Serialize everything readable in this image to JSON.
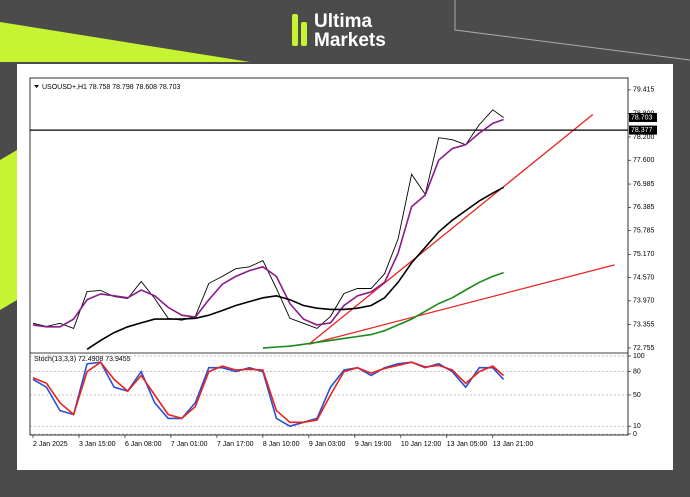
{
  "brand": [
    "Ultima",
    "Markets"
  ],
  "chart_data": [
    {
      "type": "line",
      "title": "USOUSD+,H1 78.758 78.798 78.608 78.703",
      "x": [
        0,
        5,
        10,
        15,
        20,
        25,
        30,
        35,
        40,
        45,
        50,
        55,
        60,
        65,
        70,
        75,
        80,
        85,
        90,
        95,
        100,
        105,
        110,
        115,
        120,
        125,
        130,
        135,
        140,
        145,
        150,
        155,
        160,
        165,
        170,
        174
      ],
      "xlim": [
        0,
        220
      ],
      "ylim": [
        72.65,
        79.67
      ],
      "yticks": [
        79.415,
        {
          "value": 78.8,
          "label": "78.800"
        },
        {
          "value": 78.2,
          "label": "78.200"
        },
        {
          "value": 77.6,
          "label": "77.600"
        },
        76.985,
        76.385,
        75.785,
        {
          "value": 75.17,
          "label": "75.170"
        },
        {
          "value": 74.57,
          "label": "74.570"
        },
        {
          "value": 73.97,
          "label": "73.970"
        },
        73.355,
        72.755
      ],
      "price_lines": [
        78.703,
        78.377
      ],
      "series": [
        {
          "color": "#000000",
          "values": [
            73.39,
            73.31,
            73.39,
            73.26,
            74.21,
            74.24,
            74.08,
            74.03,
            74.47,
            74.03,
            73.52,
            73.47,
            73.57,
            74.42,
            74.6,
            74.8,
            74.85,
            75.01,
            74.29,
            73.52,
            73.39,
            73.26,
            73.57,
            74.16,
            74.29,
            74.29,
            74.67,
            75.57,
            77.24,
            76.72,
            78.18,
            78.13,
            78.0,
            78.52,
            78.9,
            78.7
          ]
        },
        {
          "color": "#8b1a8b",
          "values": [
            73.35,
            73.3,
            73.3,
            73.5,
            74.0,
            74.15,
            74.1,
            74.05,
            74.25,
            74.1,
            73.8,
            73.6,
            73.55,
            74.0,
            74.4,
            74.6,
            74.75,
            74.85,
            74.6,
            73.9,
            73.5,
            73.35,
            73.4,
            73.85,
            74.1,
            74.2,
            74.45,
            75.2,
            76.4,
            76.7,
            77.6,
            77.9,
            78.0,
            78.3,
            78.55,
            78.65
          ]
        },
        {
          "color": "#000000",
          "values": [
            null,
            null,
            null,
            null,
            72.72,
            72.95,
            73.15,
            73.3,
            73.4,
            73.5,
            73.5,
            73.5,
            73.52,
            73.6,
            73.72,
            73.85,
            73.95,
            74.05,
            74.1,
            74.0,
            73.85,
            73.78,
            73.75,
            73.75,
            73.78,
            73.85,
            74.05,
            74.45,
            74.95,
            75.35,
            75.75,
            76.05,
            76.3,
            76.55,
            76.75,
            76.9
          ]
        },
        {
          "color": "#1a8a1a",
          "values": [
            null,
            null,
            null,
            null,
            null,
            null,
            null,
            null,
            null,
            null,
            null,
            null,
            null,
            null,
            null,
            null,
            null,
            72.75,
            72.78,
            72.8,
            72.85,
            72.9,
            72.95,
            73.0,
            73.05,
            73.1,
            73.2,
            73.35,
            73.5,
            73.7,
            73.9,
            74.05,
            74.25,
            74.45,
            74.6,
            74.7
          ]
        }
      ],
      "trend_lines": [
        {
          "color": "#e8231f",
          "x": [
            102,
            207
          ],
          "y": [
            72.85,
            78.78
          ]
        },
        {
          "color": "#e8231f",
          "x": [
            102,
            215
          ],
          "y": [
            72.85,
            74.9
          ]
        }
      ]
    },
    {
      "type": "line",
      "title": "Stoch(13,3,3) 72.4908 73.9455",
      "x": [
        0,
        5,
        10,
        15,
        20,
        25,
        30,
        35,
        40,
        45,
        50,
        55,
        60,
        65,
        70,
        75,
        80,
        85,
        90,
        95,
        100,
        105,
        110,
        115,
        120,
        125,
        130,
        135,
        140,
        145,
        150,
        155,
        160,
        165,
        170,
        174
      ],
      "xlim": [
        0,
        220
      ],
      "xticks": [
        {
          "value": 0,
          "label": "2 Jan 2025"
        },
        {
          "value": 17,
          "label": "3 Jan 15:00"
        },
        {
          "value": 34,
          "label": "6 Jan 08:00"
        },
        {
          "value": 51,
          "label": "7 Jan 01:00"
        },
        {
          "value": 68,
          "label": "7 Jan 17:00"
        },
        {
          "value": 85,
          "label": "8 Jan 10:00"
        },
        {
          "value": 102,
          "label": "9 Jan 03:00"
        },
        {
          "value": 119,
          "label": "9 Jan 19:00"
        },
        {
          "value": 136,
          "label": "10 Jan 12:00"
        },
        {
          "value": 153,
          "label": "13 Jan 05:00"
        },
        {
          "value": 170,
          "label": "13 Jan 21:00"
        }
      ],
      "ylim": [
        0,
        100
      ],
      "yticks": [
        100,
        80,
        50,
        10,
        0
      ],
      "series": [
        {
          "color": "#2b4fd6",
          "values": [
            70,
            60,
            30,
            25,
            90,
            92,
            60,
            55,
            80,
            40,
            20,
            20,
            40,
            85,
            85,
            80,
            85,
            80,
            20,
            10,
            15,
            20,
            60,
            82,
            85,
            75,
            85,
            90,
            92,
            85,
            90,
            80,
            60,
            85,
            85,
            70
          ]
        },
        {
          "color": "#e8231f",
          "values": [
            72,
            65,
            40,
            25,
            80,
            92,
            70,
            55,
            75,
            50,
            25,
            20,
            35,
            80,
            87,
            82,
            83,
            82,
            30,
            15,
            15,
            18,
            50,
            80,
            85,
            78,
            84,
            88,
            92,
            86,
            88,
            82,
            65,
            80,
            87,
            75
          ]
        }
      ]
    }
  ]
}
